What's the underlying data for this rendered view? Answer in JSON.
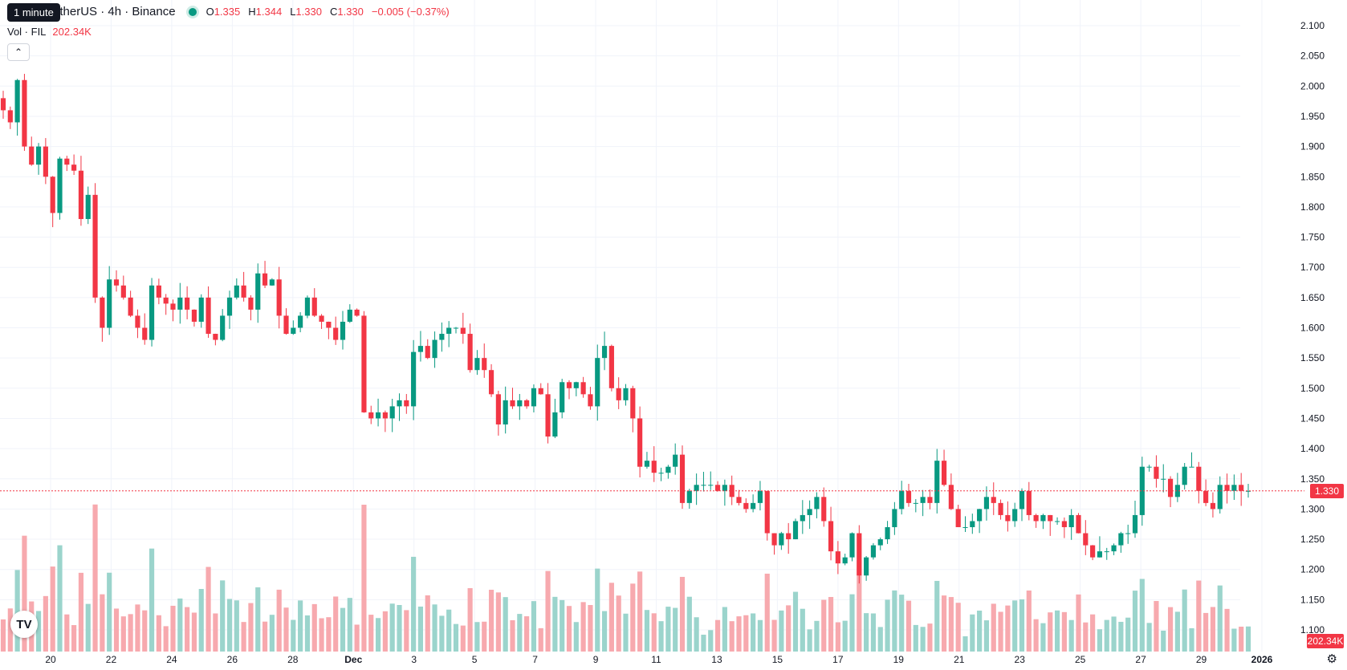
{
  "legend": {
    "symbol": "etherUS · 4h · Binance",
    "o_label": "O",
    "o_value": "1.335",
    "h_label": "H",
    "h_value": "1.344",
    "l_label": "L",
    "l_value": "1.330",
    "c_label": "C",
    "c_value": "1.330",
    "change": "−0.005 (−0.37%)"
  },
  "tooltip": "1 minute",
  "volume_legend": {
    "label": "Vol · FIL",
    "value": "202.34K"
  },
  "collapse_icon": "chevron-up-icon",
  "logo": "TV",
  "settings_icon": "gear-icon",
  "current_price_tag": "1.330",
  "current_volume_tag": "202.34K",
  "colors": {
    "up": "#089981",
    "down": "#f23645",
    "up_volume": "#9bd4cc",
    "down_volume": "#f7a9ae",
    "grid": "#f0f3fa"
  },
  "chart_data": {
    "type": "candlestick",
    "interval": "4h",
    "price_axis": {
      "ticks": [
        "2.100",
        "2.050",
        "2.000",
        "1.950",
        "1.900",
        "1.850",
        "1.800",
        "1.750",
        "1.700",
        "1.650",
        "1.600",
        "1.550",
        "1.500",
        "1.450",
        "1.400",
        "1.350",
        "1.300",
        "1.250",
        "1.200",
        "1.150",
        "1.100"
      ],
      "range": [
        1.1,
        2.1
      ]
    },
    "date_axis": {
      "ticks": [
        "20",
        "22",
        "24",
        "26",
        "28",
        "Dec",
        "3",
        "5",
        "7",
        "9",
        "11",
        "13",
        "15",
        "17",
        "19",
        "21",
        "23",
        "25",
        "27",
        "29",
        "2026"
      ]
    },
    "last_price": 1.33,
    "closes": [
      1.96,
      1.94,
      2.01,
      1.9,
      1.87,
      1.9,
      1.85,
      1.79,
      1.88,
      1.87,
      1.86,
      1.78,
      1.82,
      1.65,
      1.6,
      1.68,
      1.67,
      1.65,
      1.62,
      1.6,
      1.58,
      1.67,
      1.65,
      1.64,
      1.63,
      1.65,
      1.63,
      1.61,
      1.65,
      1.59,
      1.58,
      1.62,
      1.65,
      1.67,
      1.65,
      1.63,
      1.69,
      1.67,
      1.68,
      1.62,
      1.59,
      1.6,
      1.62,
      1.65,
      1.62,
      1.61,
      1.6,
      1.58,
      1.61,
      1.63,
      1.62,
      1.46,
      1.45,
      1.46,
      1.45,
      1.47,
      1.48,
      1.47,
      1.56,
      1.57,
      1.55,
      1.58,
      1.59,
      1.6,
      1.6,
      1.59,
      1.53,
      1.55,
      1.53,
      1.49,
      1.44,
      1.48,
      1.47,
      1.48,
      1.47,
      1.5,
      1.49,
      1.42,
      1.46,
      1.51,
      1.5,
      1.51,
      1.49,
      1.47,
      1.55,
      1.57,
      1.5,
      1.48,
      1.5,
      1.45,
      1.37,
      1.38,
      1.36,
      1.36,
      1.37,
      1.39,
      1.31,
      1.33,
      1.34,
      1.34,
      1.34,
      1.33,
      1.34,
      1.32,
      1.31,
      1.3,
      1.31,
      1.33,
      1.26,
      1.24,
      1.26,
      1.25,
      1.28,
      1.29,
      1.3,
      1.32,
      1.28,
      1.23,
      1.21,
      1.22,
      1.26,
      1.19,
      1.22,
      1.24,
      1.25,
      1.27,
      1.3,
      1.33,
      1.31,
      1.31,
      1.32,
      1.31,
      1.38,
      1.34,
      1.3,
      1.27,
      1.27,
      1.28,
      1.3,
      1.32,
      1.31,
      1.29,
      1.28,
      1.3,
      1.33,
      1.29,
      1.28,
      1.29,
      1.28,
      1.28,
      1.27,
      1.29,
      1.26,
      1.24,
      1.22,
      1.23,
      1.23,
      1.24,
      1.26,
      1.26,
      1.29,
      1.37,
      1.37,
      1.35,
      1.35,
      1.32,
      1.34,
      1.37,
      1.37,
      1.33,
      1.31,
      1.3,
      1.34,
      1.33,
      1.34,
      1.33,
      1.33
    ]
  }
}
